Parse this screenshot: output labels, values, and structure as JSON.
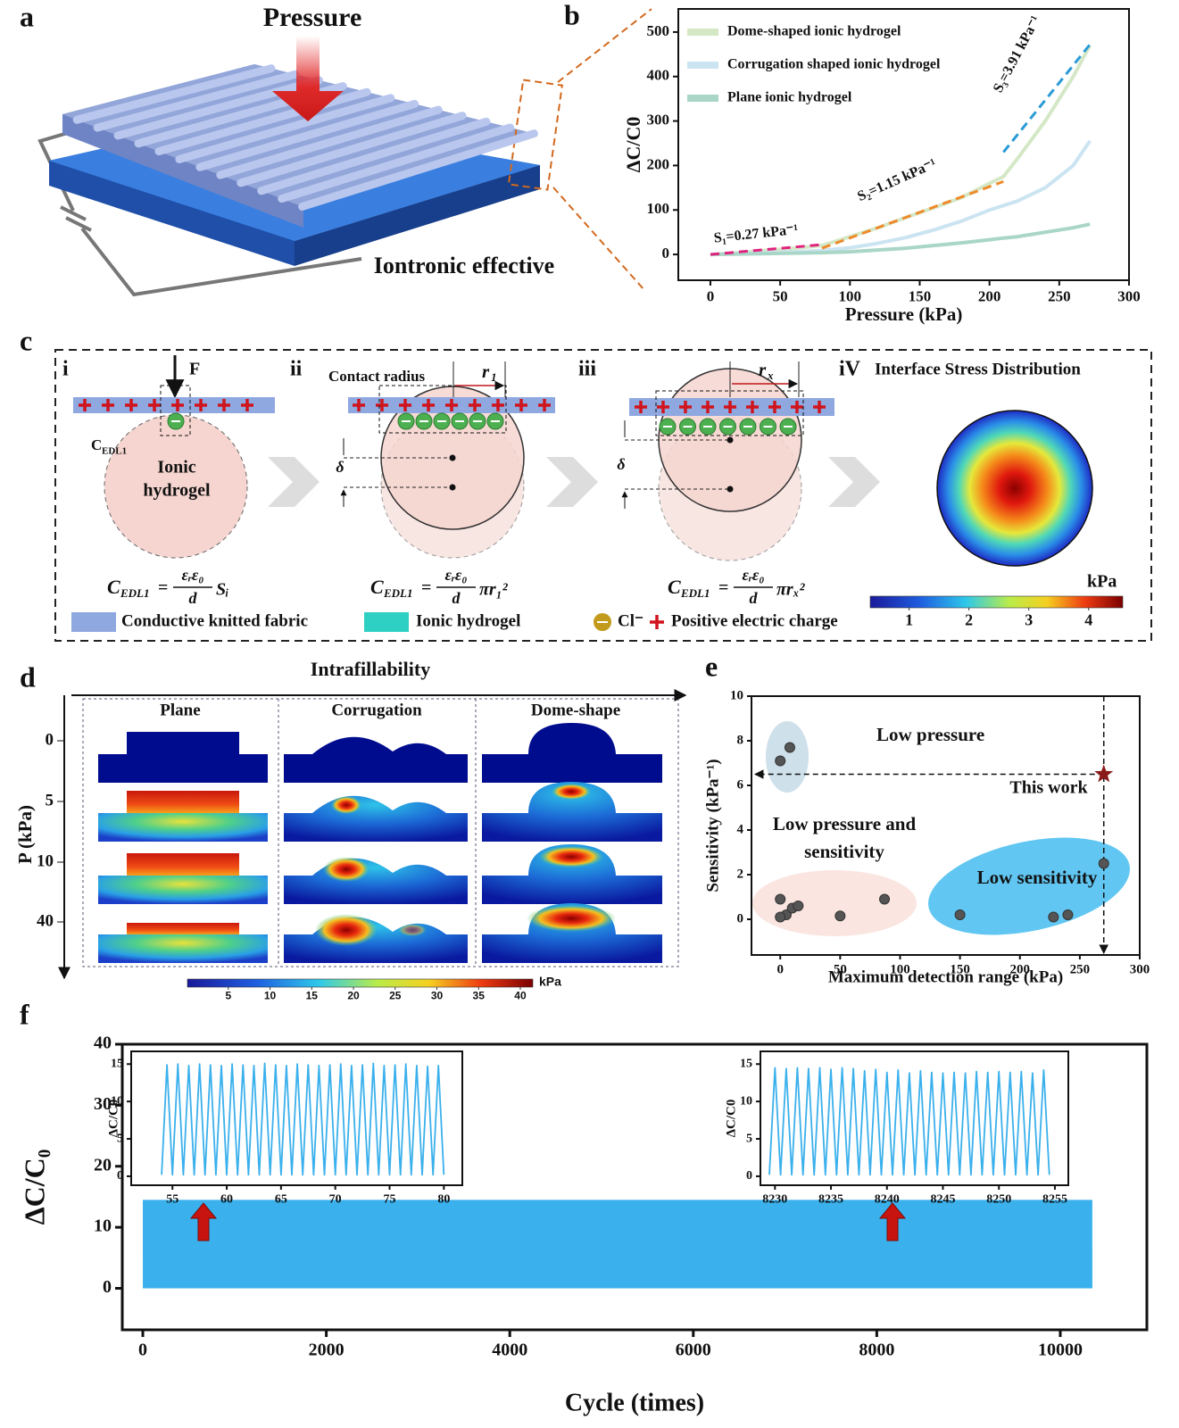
{
  "figure": {
    "panel_labels": [
      "a",
      "b",
      "c",
      "d",
      "e",
      "f"
    ],
    "a": {
      "force": "Pressure",
      "effect": "Iontronic effective"
    },
    "c": {
      "steps": [
        "i",
        "ii",
        "iii",
        "iV"
      ],
      "force": "F",
      "cedl": {
        "main": "C",
        "sub": "EDL1"
      },
      "hydrogel_label": [
        "Ionic",
        "hydrogel"
      ],
      "contact_radius": "Contact radius",
      "radius_labels": [
        {
          "main": "r",
          "sub": "1"
        },
        {
          "main": "r",
          "sub": "x"
        }
      ],
      "delta": "δ",
      "stress_title": "Interface Stress Distribution",
      "equations": [
        {
          "main": "C",
          "sub": "EDL1",
          "relation": "=",
          "numerator": "εᵣε₀",
          "denominator": "d",
          "factor": "Sᵢ"
        },
        {
          "main": "C",
          "sub": "EDL1",
          "relation": "=",
          "numerator": "εᵣε₀",
          "denominator": "d",
          "factor": "πr₁²"
        },
        {
          "main": "C",
          "sub": "EDL1",
          "relation": "=",
          "numerator": "εᵣε₀",
          "denominator": "d",
          "factor": "πrₓ²"
        }
      ],
      "colorbar": {
        "unit": "kPa",
        "ticks": [
          1,
          2,
          3,
          4
        ],
        "lim": [
          0.35,
          4.57
        ]
      },
      "legend": [
        "Conductive knitted fabric",
        "Ionic hydrogel",
        "Cl⁻",
        "Positive electric charge"
      ]
    },
    "d": {
      "title": "Intrafillability",
      "columns": [
        "Plane",
        "Corrugation",
        "Dome-shape"
      ],
      "axis_label": "P (kPa)",
      "levels": [
        0,
        5,
        10,
        40
      ],
      "colorbar": {
        "unit": "kPa",
        "ticks": [
          5,
          10,
          15,
          20,
          25,
          30,
          35,
          40
        ],
        "lim": [
          0.1,
          41.5
        ]
      }
    }
  },
  "chart_data": [
    {
      "type": "line",
      "x_label": "Pressure (kPa)",
      "y_label": "ΔC/C0",
      "x": [
        0,
        20,
        40,
        60,
        80,
        100,
        120,
        140,
        160,
        180,
        200,
        210,
        220,
        240,
        260,
        272
      ],
      "series": [
        {
          "name": "Dome-shaped ionic hydrogel",
          "color": "#d5e8c6",
          "values": [
            0,
            4,
            9,
            14,
            20,
            40,
            60,
            83,
            105,
            128,
            160,
            175,
            215,
            300,
            400,
            470
          ]
        },
        {
          "name": "Corrugation shaped  ionic hydrogel",
          "color": "#cbe4f1",
          "values": [
            0,
            2,
            4,
            6,
            9,
            15,
            25,
            38,
            55,
            75,
            100,
            110,
            120,
            150,
            200,
            255
          ]
        },
        {
          "name": "Plane ionic hydrogel",
          "color": "#a9d6c6",
          "values": [
            0,
            1,
            2,
            3,
            4,
            6,
            10,
            14,
            20,
            26,
            33,
            37,
            40,
            50,
            60,
            68
          ]
        }
      ],
      "fits": [
        {
          "label": "S₁=0.27 kPa⁻¹",
          "color": "#e0237f",
          "x": [
            0,
            80
          ],
          "values": [
            0,
            22
          ]
        },
        {
          "label": "S₂=1.15 kPa⁻¹",
          "color": "#ee8a2a",
          "x": [
            80,
            210
          ],
          "values": [
            14,
            164
          ]
        },
        {
          "label": "S₃=3.91 kPa⁻¹",
          "color": "#2a9bd5",
          "x": [
            210,
            272
          ],
          "values": [
            230,
            472
          ]
        }
      ],
      "xlim": [
        -23,
        300
      ],
      "ylim": [
        -58,
        552
      ],
      "xticks": [
        0,
        50,
        100,
        150,
        200,
        250,
        300
      ],
      "yticks": [
        0,
        100,
        200,
        300,
        400,
        500
      ],
      "legend": "upper left"
    },
    {
      "type": "scatter",
      "x_label": "Maximum detection range (kPa)",
      "y_label": "Sensitivity (kPa⁻¹)",
      "x": [
        0,
        8,
        0,
        5,
        10,
        0,
        15,
        50,
        87,
        150,
        228,
        240,
        270
      ],
      "values": [
        7.1,
        7.7,
        0.9,
        0.2,
        0.5,
        0.1,
        0.6,
        0.15,
        0.9,
        0.2,
        0.1,
        0.2,
        2.5
      ],
      "color": "#555555",
      "highlight": {
        "label": "This work",
        "x": 270,
        "value": 6.5,
        "color": "#8b1a1a"
      },
      "regions": [
        {
          "label": [
            "Low pressure"
          ],
          "color": "#c6dbe6"
        },
        {
          "label": [
            "Low pressure and",
            "sensitivity"
          ],
          "color": "#f9e1da"
        },
        {
          "label": [
            "Low sensitivity"
          ],
          "color": "#45bdf0"
        }
      ],
      "xlim": [
        -24,
        300
      ],
      "ylim": [
        -1.6,
        10
      ],
      "xticks": [
        0,
        50,
        100,
        150,
        200,
        250,
        300
      ],
      "yticks": [
        0,
        2,
        4,
        6,
        8,
        10
      ]
    },
    {
      "type": "area",
      "x_label": "Cycle (times)",
      "y_label": "ΔC/C₀",
      "color": "#3ab0ec",
      "x": [
        0,
        10350
      ],
      "values": [
        14.5,
        14.5
      ],
      "xlim": [
        -224,
        10944
      ],
      "ylim": [
        -6.8,
        40
      ],
      "xticks": [
        0,
        2000,
        4000,
        6000,
        8000,
        10000
      ],
      "yticks": [
        0,
        10,
        20,
        30,
        40
      ]
    },
    {
      "type": "line",
      "y_label": "ΔC/C0",
      "x": [
        54,
        54.5,
        55,
        55.5,
        56,
        56.5,
        57,
        57.5,
        58,
        58.5,
        59,
        59.5,
        60,
        60.5,
        61,
        61.5,
        62,
        62.5,
        63,
        63.5,
        64,
        64.5,
        65,
        65.5,
        66,
        66.5,
        67,
        67.5,
        68,
        68.5,
        69,
        69.5,
        70,
        70.5,
        71,
        71.5,
        72,
        72.5,
        73,
        73.5,
        74,
        74.5,
        75,
        75.5,
        76,
        76.5,
        77,
        77.5,
        78,
        78.5,
        79,
        79.5,
        80
      ],
      "series": [
        {
          "color": "#3ab0ec",
          "values": [
            0.2,
            14.9,
            0.2,
            15,
            0.2,
            14.8,
            0.2,
            15,
            0.2,
            14.9,
            0.2,
            14.8,
            0.2,
            15,
            0.2,
            14.9,
            0.2,
            14.8,
            0.2,
            15.1,
            0.2,
            14.9,
            0.2,
            14.8,
            0.2,
            15,
            0.2,
            14.9,
            0.2,
            14.8,
            0.2,
            14.9,
            0.2,
            15,
            0.2,
            14.8,
            0.2,
            14.9,
            0.2,
            15.1,
            0.2,
            14.8,
            0.2,
            14.9,
            0.2,
            15,
            0.2,
            14.8,
            0.2,
            14.7,
            0.2,
            14.8,
            0.2
          ]
        }
      ],
      "xlim": [
        51.2,
        81.7
      ],
      "ylim": [
        -1.2,
        16.7
      ],
      "xticks": [
        55,
        60,
        65,
        70,
        75,
        80
      ],
      "yticks": [
        0,
        5,
        10,
        15
      ]
    },
    {
      "type": "line",
      "y_label": "ΔC/C0",
      "x": [
        8229.5,
        8230,
        8230.5,
        8231,
        8231.5,
        8232,
        8232.5,
        8233,
        8233.5,
        8234,
        8234.5,
        8235,
        8235.5,
        8236,
        8236.5,
        8237,
        8237.5,
        8238,
        8238.5,
        8239,
        8239.5,
        8240,
        8240.5,
        8241,
        8241.5,
        8242,
        8242.5,
        8243,
        8243.5,
        8244,
        8244.5,
        8245,
        8245.5,
        8246,
        8246.5,
        8247,
        8247.5,
        8248,
        8248.5,
        8249,
        8249.5,
        8250,
        8250.5,
        8251,
        8251.5,
        8252,
        8252.5,
        8253,
        8253.5,
        8254,
        8254.5
      ],
      "series": [
        {
          "color": "#3ab0ec",
          "values": [
            0.2,
            14.5,
            0.2,
            14.4,
            0.2,
            14.5,
            0.2,
            14.4,
            0.2,
            14.5,
            0.2,
            14.3,
            0.2,
            14.5,
            0.2,
            14.4,
            0.2,
            14.1,
            0.2,
            14.3,
            0.2,
            13.9,
            0.2,
            14.2,
            0.2,
            13.8,
            0.2,
            14.1,
            0.2,
            13.9,
            0.2,
            13.8,
            0.2,
            13.9,
            0.2,
            13.8,
            0.2,
            14,
            0.2,
            13.9,
            0.2,
            14,
            0.2,
            13.9,
            0.2,
            14,
            0.2,
            13.8,
            0.2,
            14.2,
            0.2
          ]
        }
      ],
      "xlim": [
        8228.7,
        8256.2
      ],
      "ylim": [
        -1.2,
        16.7
      ],
      "xticks": [
        8230,
        8235,
        8240,
        8245,
        8250,
        8255
      ],
      "yticks": [
        0,
        5,
        10,
        15
      ]
    }
  ]
}
